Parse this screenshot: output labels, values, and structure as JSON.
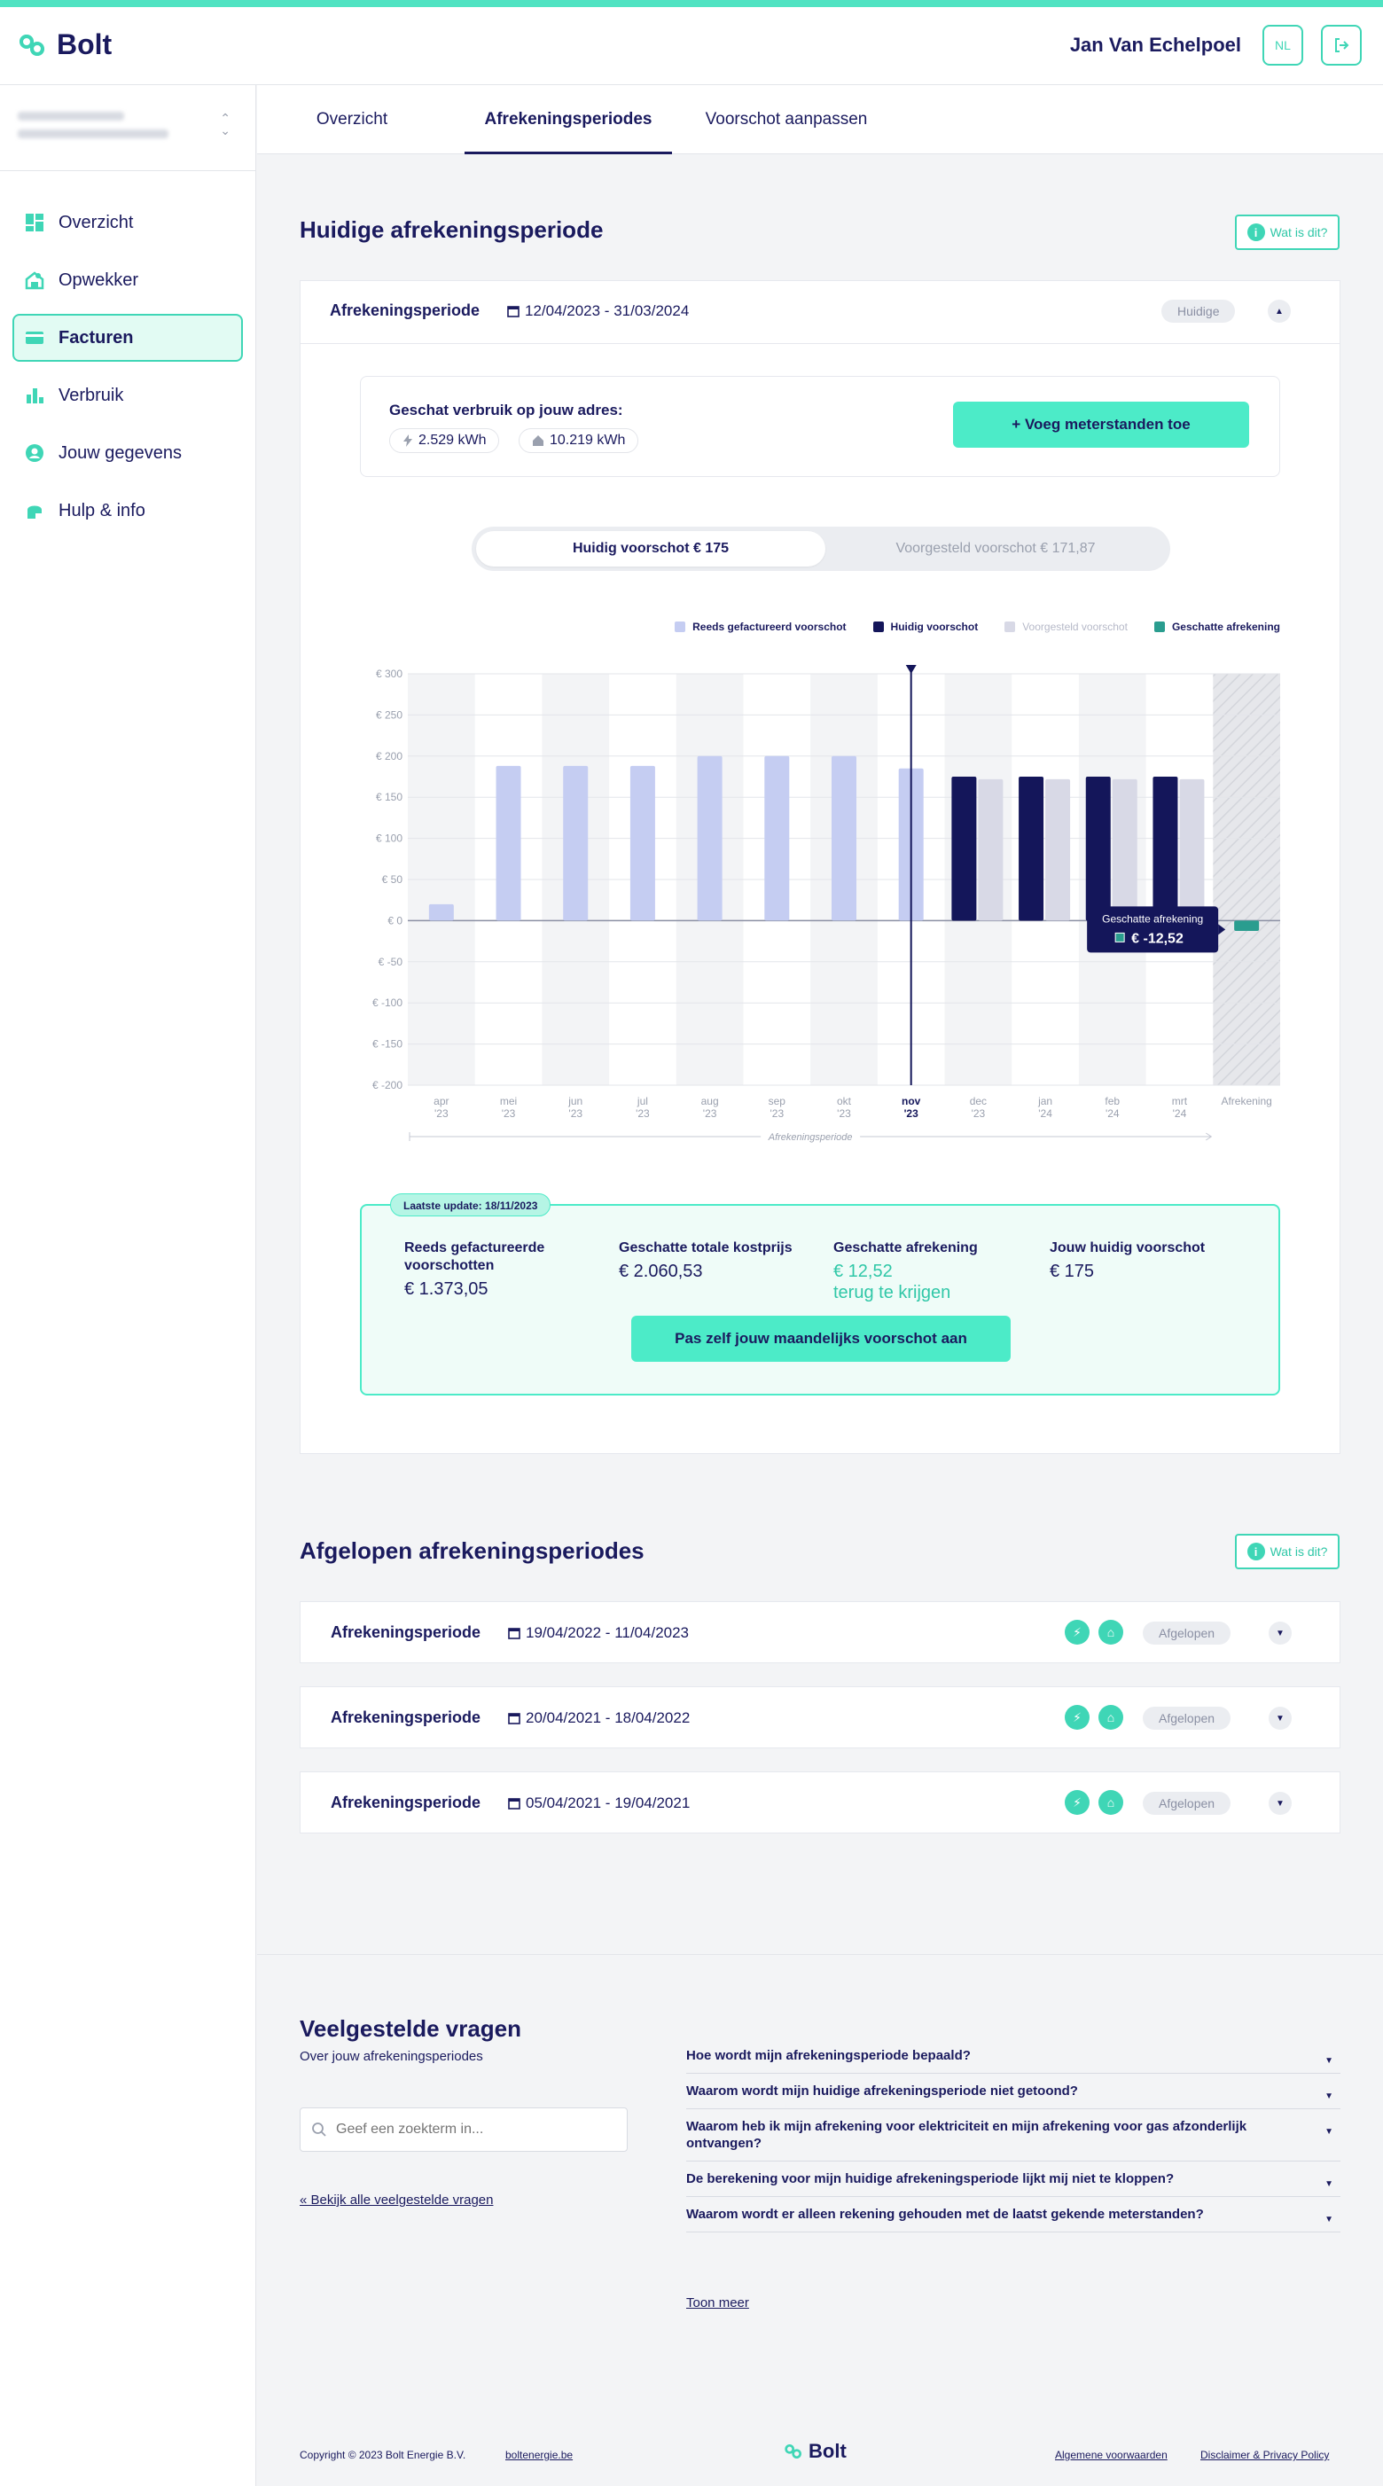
{
  "brand": {
    "name": "Bolt",
    "accent": "#3fd6b6",
    "navy": "#1a1a5e"
  },
  "header": {
    "user_name": "Jan Van Echelpoel",
    "lang": "NL"
  },
  "sidebar": {
    "items": [
      {
        "label": "Overzicht",
        "icon": "dashboard-icon"
      },
      {
        "label": "Opwekker",
        "icon": "producer-icon"
      },
      {
        "label": "Facturen",
        "icon": "invoice-icon",
        "active": true
      },
      {
        "label": "Verbruik",
        "icon": "chart-icon"
      },
      {
        "label": "Jouw gegevens",
        "icon": "user-icon"
      },
      {
        "label": "Hulp & info",
        "icon": "help-icon"
      }
    ]
  },
  "tabs": [
    {
      "label": "Overzicht"
    },
    {
      "label": "Afrekeningsperiodes",
      "active": true
    },
    {
      "label": "Voorschot aanpassen"
    }
  ],
  "current": {
    "title": "Huidige afrekeningsperiode",
    "info_label": "Wat is dit?",
    "period_label": "Afrekeningsperiode",
    "period_dates": "12/04/2023 - 31/03/2024",
    "period_status": "Huidige",
    "usage_title": "Geschat verbruik op jouw adres:",
    "usage_elec": "2.529 kWh",
    "usage_gas": "10.219 kWh",
    "add_readings": "+ Voeg meterstanden toe",
    "toggle_on": "Huidig voorschot € 175",
    "toggle_off": "Voorgesteld voorschot € 171,87",
    "legend": [
      "Reeds gefactureerd voorschot",
      "Huidig voorschot",
      "Voorgesteld voorschot",
      "Geschatte afrekening"
    ],
    "summary": {
      "badge": "Laatste update: 18/11/2023",
      "col1_label": "Reeds gefactureerde voorschotten",
      "col1_value": "€ 1.373,05",
      "col2_label": "Geschatte totale kostprijs",
      "col2_value": "€ 2.060,53",
      "col3_label": "Geschatte afrekening",
      "col3_value": "€ 12,52",
      "col3_sub": "terug te krijgen",
      "col4_label": "Jouw huidig voorschot",
      "col4_value": "€ 175",
      "button": "Pas zelf jouw maandelijks voorschot aan"
    }
  },
  "chart_data": {
    "type": "bar",
    "categories": [
      "apr '23",
      "mei '23",
      "jun '23",
      "jul '23",
      "aug '23",
      "sep '23",
      "okt '23",
      "nov '23",
      "dec '23",
      "jan '24",
      "feb '24",
      "mrt '24",
      "Afrekening"
    ],
    "cat_line1": [
      "apr",
      "mei",
      "jun",
      "jul",
      "aug",
      "sep",
      "okt",
      "nov",
      "dec",
      "jan",
      "feb",
      "mrt",
      "Afrekening"
    ],
    "cat_line2": [
      "'23",
      "'23",
      "'23",
      "'23",
      "'23",
      "'23",
      "'23",
      "'23",
      "'23",
      "'24",
      "'24",
      "'24",
      ""
    ],
    "yticks": [
      "€ 300",
      "€ 250",
      "€ 200",
      "€ 150",
      "€ 100",
      "€ 50",
      "€ 0",
      "€ -50",
      "€ -100",
      "€ -150",
      "€ -200"
    ],
    "ylim": [
      -200,
      300
    ],
    "series": [
      {
        "name": "Reeds gefactureerd voorschot",
        "color": "#c5cdf2",
        "values": [
          20,
          188,
          188,
          188,
          200,
          200,
          200,
          185,
          null,
          null,
          null,
          null,
          null
        ]
      },
      {
        "name": "Huidig voorschot",
        "color": "#14165a",
        "values": [
          null,
          null,
          null,
          null,
          null,
          null,
          null,
          null,
          175,
          175,
          175,
          175,
          null
        ]
      },
      {
        "name": "Voorgesteld voorschot",
        "color": "#d8d9e6",
        "values": [
          null,
          null,
          null,
          null,
          null,
          null,
          null,
          null,
          171.87,
          171.87,
          171.87,
          171.87,
          null
        ]
      },
      {
        "name": "Geschatte afrekening",
        "color": "#2a9d8f",
        "values": [
          null,
          null,
          null,
          null,
          null,
          null,
          null,
          null,
          null,
          null,
          null,
          null,
          -12.52
        ]
      }
    ],
    "current_month": "nov '23",
    "period_axis_label": "Afrekeningsperiode",
    "tooltip_title": "Geschatte afrekening",
    "tooltip_value": "€ -12,52",
    "grid": true
  },
  "past": {
    "title": "Afgelopen afrekeningsperiodes",
    "info_label": "Wat is dit?",
    "rows": [
      {
        "label": "Afrekeningsperiode",
        "dates": "19/04/2022 - 11/04/2023",
        "status": "Afgelopen"
      },
      {
        "label": "Afrekeningsperiode",
        "dates": "20/04/2021 - 18/04/2022",
        "status": "Afgelopen"
      },
      {
        "label": "Afrekeningsperiode",
        "dates": "05/04/2021 - 19/04/2021",
        "status": "Afgelopen"
      }
    ]
  },
  "faq": {
    "title": "Veelgestelde vragen",
    "subtitle": "Over jouw afrekeningsperiodes",
    "search_placeholder": "Geef een zoekterm in...",
    "all_link": "« Bekijk alle veelgestelde vragen",
    "questions": [
      "Hoe wordt mijn afrekeningsperiode bepaald?",
      "Waarom wordt mijn huidige afrekeningsperiode niet getoond?",
      "Waarom heb ik mijn afrekening voor elektriciteit en mijn afrekening voor gas afzonderlijk ontvangen?",
      "De berekening voor mijn huidige afrekeningsperiode lijkt mij niet te kloppen?",
      "Waarom wordt er alleen rekening gehouden met de laatst gekende meterstanden?"
    ],
    "more": "Toon meer"
  },
  "footer": {
    "copyright": "Copyright © 2023 Bolt Energie B.V.",
    "site": "boltenergie.be",
    "terms": "Algemene voorwaarden",
    "privacy": "Disclaimer & Privacy Policy"
  }
}
